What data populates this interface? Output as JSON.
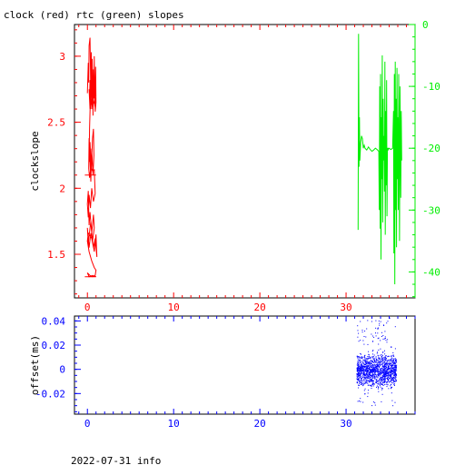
{
  "title": "clock (red) rtc (green) slopes",
  "footer": "2022-07-31 info",
  "colors": {
    "clock": "#ff0000",
    "rtc": "#00ee00",
    "offset": "#0000ff",
    "frame": "#000000"
  },
  "chart_data": [
    {
      "type": "line",
      "title": "clock (red) rtc (green) slopes",
      "xlabel": "",
      "ylabel": "clockslope",
      "y2label": "",
      "xlim": [
        -1.5,
        38
      ],
      "ylim": [
        1.17,
        3.24
      ],
      "y2lim": [
        -44.2,
        0
      ],
      "xticks": [
        0,
        10,
        20,
        30
      ],
      "xtick_labels": [
        "0",
        "10",
        "20",
        "30"
      ],
      "yticks": [
        1.5,
        2,
        2.5,
        3
      ],
      "ytick_labels": [
        "1.5",
        "2",
        "2.5",
        "3"
      ],
      "y2ticks": [
        0,
        -10,
        -20,
        -30,
        -40
      ],
      "y2tick_labels": [
        "0",
        "-10",
        "-20",
        "-30",
        "-40"
      ],
      "grid": false,
      "series": [
        {
          "name": "clock",
          "axis": "left",
          "x": [
            0.0,
            0.1,
            0.15,
            0.2,
            0.3,
            0.35,
            0.4,
            0.45,
            0.5,
            0.55,
            0.6,
            0.65,
            0.7,
            0.75,
            0.8,
            0.85,
            0.9,
            0.95,
            1.0,
            0.9,
            0.8,
            0.7,
            0.6,
            0.5,
            0.45,
            0.4,
            0.35,
            0.3,
            0.25,
            0.2,
            0.3,
            0.5,
            0.7,
            0.9,
            1.0,
            0.9,
            0.7,
            0.5,
            0.35,
            0.25,
            0.2,
            0.3,
            0.45,
            0.6,
            0.7,
            0.75,
            0.65,
            0.5,
            0.4,
            0.3,
            0.2,
            0.15,
            0.25,
            0.4,
            0.6,
            0.8,
            0.9,
            0.7,
            0.5,
            0.35,
            0.2,
            0.1,
            0.0,
            0.1,
            0.2,
            0.3,
            0.5,
            0.7,
            0.8,
            0.6,
            0.4,
            0.2,
            0.1,
            0.0,
            0.2,
            0.4,
            0.6,
            0.8,
            1.0,
            1.1,
            0.9,
            0.7,
            0.5,
            0.3,
            0.1,
            0.0,
            0.2,
            0.5,
            0.8,
            1.0,
            0.9,
            0.6,
            0.3,
            0.0,
            0.2,
            0.6,
            1.0
          ],
          "y": [
            2.72,
            2.95,
            2.8,
            3.08,
            3.14,
            2.9,
            2.7,
            3.03,
            2.6,
            2.98,
            2.82,
            2.55,
            2.9,
            2.68,
            3.0,
            2.62,
            2.78,
            2.92,
            2.65,
            2.58,
            2.85,
            2.7,
            2.62,
            2.8,
            2.95,
            2.73,
            2.6,
            2.82,
            2.67,
            2.75,
            2.6,
            2.68,
            2.74,
            2.73,
            2.7,
            2.62,
            2.66,
            2.74,
            2.7,
            2.45,
            2.2,
            2.35,
            2.14,
            2.38,
            2.45,
            2.25,
            2.1,
            2.3,
            2.05,
            2.2,
            2.38,
            2.15,
            2.08,
            2.16,
            2.13,
            2.14,
            1.96,
            1.9,
            2.0,
            1.85,
            1.95,
            1.78,
            1.88,
            1.98,
            1.72,
            1.82,
            1.66,
            1.8,
            1.7,
            1.6,
            1.75,
            1.64,
            1.58,
            1.7,
            1.55,
            1.66,
            1.6,
            1.52,
            1.65,
            1.48,
            1.62,
            1.55,
            1.62,
            1.64,
            1.66,
            1.6,
            1.52,
            1.45,
            1.4,
            1.38,
            1.34,
            1.33,
            1.34,
            1.36,
            1.33,
            1.34,
            1.33
          ]
        },
        {
          "name": "rtc",
          "axis": "right",
          "x": [
            31.4,
            31.45,
            31.5,
            31.55,
            31.6,
            31.7,
            31.8,
            31.9,
            32.0,
            32.1,
            32.2,
            32.4,
            32.6,
            32.8,
            33.0,
            33.2,
            33.4,
            33.6,
            33.8,
            33.85,
            33.9,
            33.95,
            34.0,
            34.05,
            34.1,
            34.15,
            34.2,
            34.25,
            34.3,
            34.35,
            34.4,
            34.45,
            34.5,
            34.55,
            34.6,
            34.65,
            34.7,
            34.75,
            34.8,
            34.85,
            34.9,
            34.95,
            35.0,
            35.2,
            35.4,
            35.5,
            35.55,
            35.6,
            35.65,
            35.7,
            35.75,
            35.8,
            35.85,
            35.9,
            35.95,
            36.0,
            36.05,
            36.1,
            36.15,
            36.2,
            36.25,
            36.3,
            36.35,
            36.4,
            36.45
          ],
          "y": [
            -33.2,
            -1.5,
            -23,
            -15,
            -22,
            -19,
            -18,
            -18.5,
            -20,
            -19.5,
            -20,
            -20.3,
            -19.8,
            -20.2,
            -20.5,
            -20.3,
            -20,
            -20.2,
            -20.5,
            -30,
            -10,
            -33,
            -8,
            -38,
            -15,
            -25,
            -5,
            -32,
            -12,
            -22,
            -18,
            -27,
            -6,
            -34,
            -14,
            -26,
            -9,
            -31,
            -20,
            -20,
            -20.2,
            -20,
            -20,
            -20.2,
            -20,
            -14,
            -37,
            -8,
            -42,
            -6,
            -30,
            -12,
            -36,
            -7,
            -25,
            -15,
            -30,
            -8,
            -20,
            -35,
            -10,
            -18,
            -28,
            -14,
            -22
          ]
        }
      ]
    },
    {
      "type": "scatter",
      "title": "",
      "xlabel": "",
      "ylabel": "offset(ms)",
      "xlim": [
        -1.5,
        38
      ],
      "ylim": [
        -0.037,
        0.044
      ],
      "xticks": [
        0,
        10,
        20,
        30
      ],
      "xtick_labels": [
        "0",
        "10",
        "20",
        "30"
      ],
      "yticks": [
        -0.02,
        0,
        0.02,
        0.04
      ],
      "ytick_labels": [
        "-0.02",
        "0",
        "0.02",
        "0.04"
      ],
      "grid": false,
      "series": [
        {
          "name": "offset",
          "x_range": [
            31.2,
            35.8
          ],
          "y_core_range": [
            -0.016,
            0.014
          ],
          "y_outlier_range": [
            -0.03,
            0.043
          ]
        }
      ]
    }
  ]
}
